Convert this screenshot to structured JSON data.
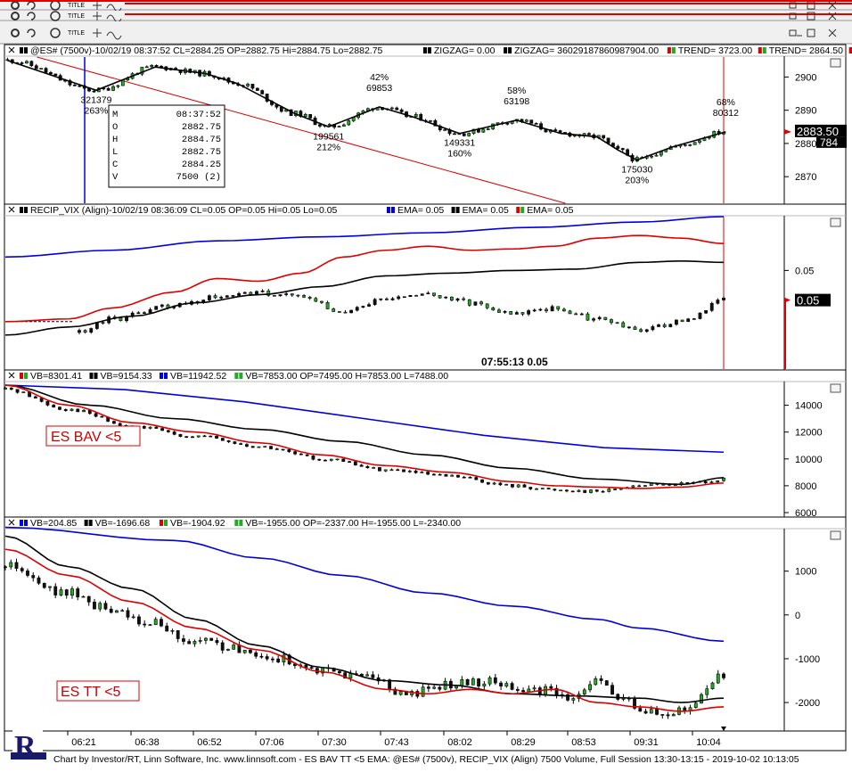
{
  "toolbars": [
    {
      "title": "TITLE"
    },
    {
      "title": "TITLE"
    },
    {
      "title": "TITLE"
    }
  ],
  "chart_data": [
    {
      "type": "candlestick",
      "header": "@ES# (7500v)-10/02/19 08:37:52 CL=2884.25 OP=2882.75 Hi=2884.75 Lo=2882.75",
      "legend": [
        "ZIGZAG = 0.00",
        "ZIGZAG = 3602918786098790 4.00",
        "TREND = 3723.00",
        "TREND = 2864.50",
        "TRE"
      ],
      "legend_text": [
        "ZIGZAG= 0.00",
        "ZIGZAG= 36029187860987904.00",
        "TREND= 3723.00",
        "TREND= 2864.50",
        "TRE"
      ],
      "yticks": [
        2870,
        2880,
        2890,
        2900
      ],
      "ylim": [
        2862,
        2906
      ],
      "last_price": "2883.50",
      "last_volume": "784",
      "zigzag": [
        {
          "t": 0.1,
          "y": 2905
        },
        {
          "t": 4.3,
          "y": 2896
        },
        {
          "t": 7.1,
          "y": 2903
        },
        {
          "t": 9.5,
          "y": 2901
        },
        {
          "t": 11.0,
          "y": 2898
        },
        {
          "t": 13.7,
          "y": 2889
        },
        {
          "t": 15.3,
          "y": 2885
        },
        {
          "t": 17.7,
          "y": 2891
        },
        {
          "t": 19.3,
          "y": 2888
        },
        {
          "t": 21.5,
          "y": 2883
        },
        {
          "t": 24.2,
          "y": 2887
        },
        {
          "t": 26.3,
          "y": 2883
        },
        {
          "t": 28.0,
          "y": 2882
        },
        {
          "t": 29.0,
          "y": 2878
        },
        {
          "t": 29.9,
          "y": 2875
        },
        {
          "t": 31.6,
          "y": 2879
        },
        {
          "t": 34.1,
          "y": 2883.5
        }
      ],
      "annotations": [
        {
          "t": 4.3,
          "y": 2896,
          "lines": [
            "321379",
            "263%"
          ],
          "pos": "below"
        },
        {
          "t": 15.3,
          "y": 2885,
          "lines": [
            "199561",
            "212%"
          ],
          "pos": "below"
        },
        {
          "t": 17.7,
          "y": 2891,
          "lines": [
            "42%",
            "69853"
          ],
          "pos": "above"
        },
        {
          "t": 21.5,
          "y": 2883,
          "lines": [
            "149331",
            "160%"
          ],
          "pos": "below"
        },
        {
          "t": 24.2,
          "y": 2887,
          "lines": [
            "58%",
            "63198"
          ],
          "pos": "above"
        },
        {
          "t": 29.9,
          "y": 2875,
          "lines": [
            "175030",
            "203%"
          ],
          "pos": "below"
        },
        {
          "t": 34.1,
          "y": 2883.5,
          "lines": [
            "68%",
            "80312"
          ],
          "pos": "above"
        }
      ],
      "data_window": [
        {
          "k": "M",
          "v": "08:37:52"
        },
        {
          "k": "O",
          "v": "2882.75"
        },
        {
          "k": "H",
          "v": "2884.75"
        },
        {
          "k": "L",
          "v": "2882.75"
        },
        {
          "k": "C",
          "v": "2884.25"
        },
        {
          "k": "V",
          "v": "7500  (2)"
        }
      ]
    },
    {
      "type": "candlestick",
      "header": "RECIP_VIX (Align)-10/02/19 08:36:09 CL=0.05 OP=0.05 Hi=0.05 Lo=0.05",
      "legend": [
        "EMA= 0.05",
        "EMA= 0.05",
        "EMA= 0.05"
      ],
      "yticks": [
        "0.05"
      ],
      "last_price": "0.05",
      "cursor_readout": "07:55:13  0.05",
      "emas": {
        "blue": [
          [
            0,
            0.3
          ],
          [
            5,
            0.25
          ],
          [
            10,
            0.18
          ],
          [
            15,
            0.15
          ],
          [
            20,
            0.12
          ],
          [
            25,
            0.08
          ],
          [
            30,
            0.04
          ],
          [
            34,
            0.0
          ]
        ],
        "black": [
          [
            0,
            0.88
          ],
          [
            3,
            0.82
          ],
          [
            6,
            0.74
          ],
          [
            9,
            0.64
          ],
          [
            12,
            0.58
          ],
          [
            15,
            0.52
          ],
          [
            18,
            0.44
          ],
          [
            21,
            0.42
          ],
          [
            24,
            0.4
          ],
          [
            27,
            0.39
          ],
          [
            30,
            0.34
          ],
          [
            32,
            0.33
          ],
          [
            34,
            0.34
          ]
        ],
        "red": [
          [
            0,
            0.78
          ],
          [
            3,
            0.76
          ],
          [
            5,
            0.68
          ],
          [
            8,
            0.56
          ],
          [
            10,
            0.46
          ],
          [
            12,
            0.48
          ],
          [
            14,
            0.42
          ],
          [
            16,
            0.3
          ],
          [
            18,
            0.25
          ],
          [
            20,
            0.22
          ],
          [
            22,
            0.25
          ],
          [
            24,
            0.24
          ],
          [
            26,
            0.22
          ],
          [
            28,
            0.16
          ],
          [
            30,
            0.14
          ],
          [
            32,
            0.16
          ],
          [
            34,
            0.2
          ]
        ]
      }
    },
    {
      "type": "candlestick",
      "header_items": [
        "VB=8301.41",
        "VB=9154.33",
        "VB=11942.52",
        "VB=7853.00 OP=7495.00 H=7853.00 L=7488.00"
      ],
      "yticks": [
        6000,
        8000,
        10000,
        12000,
        14000
      ],
      "ylim": [
        5800,
        15700
      ],
      "label": "ES BAV <5",
      "emas": {
        "blue": [
          [
            0,
            15500
          ],
          [
            34,
            10500
          ]
        ],
        "black": [
          [
            0,
            15500
          ],
          [
            4,
            14000
          ],
          [
            8,
            13000
          ],
          [
            12,
            12200
          ],
          [
            16,
            11300
          ],
          [
            20,
            10300
          ],
          [
            24,
            9300
          ],
          [
            28,
            8500
          ],
          [
            32,
            8100
          ],
          [
            34,
            8600
          ]
        ],
        "red": [
          [
            0,
            15500
          ],
          [
            3,
            14000
          ],
          [
            6,
            12700
          ],
          [
            9,
            12000
          ],
          [
            12,
            11200
          ],
          [
            15,
            10300
          ],
          [
            18,
            9500
          ],
          [
            21,
            9000
          ],
          [
            24,
            8300
          ],
          [
            26,
            8000
          ],
          [
            28,
            7900
          ],
          [
            30,
            7800
          ],
          [
            32,
            7900
          ],
          [
            34,
            8200
          ]
        ]
      }
    },
    {
      "type": "candlestick",
      "header_items": [
        "VB=204.85",
        "VB=-1696.68",
        "VB=-1904.92",
        "VB=-1955.00 OP=-2337.00 H=-1955.00 L=-2340.00"
      ],
      "yticks": [
        -2000,
        -1000,
        0,
        1000
      ],
      "ylim": [
        -2650,
        1950
      ],
      "label": "ES TT <5",
      "emas": {
        "blue": [
          [
            0,
            2000
          ],
          [
            8,
            1700
          ],
          [
            12,
            1300
          ],
          [
            16,
            900
          ],
          [
            20,
            500
          ],
          [
            24,
            200
          ],
          [
            28,
            -100
          ],
          [
            30,
            -300
          ],
          [
            34,
            -600
          ]
        ],
        "black": [
          [
            0,
            1800
          ],
          [
            3,
            1100
          ],
          [
            6,
            600
          ],
          [
            9,
            -100
          ],
          [
            12,
            -700
          ],
          [
            15,
            -1200
          ],
          [
            18,
            -1500
          ],
          [
            21,
            -1600
          ],
          [
            24,
            -1800
          ],
          [
            27,
            -1850
          ],
          [
            30,
            -1900
          ],
          [
            32,
            -2000
          ],
          [
            34,
            -1900
          ]
        ],
        "red": [
          [
            0,
            1500
          ],
          [
            3,
            900
          ],
          [
            6,
            300
          ],
          [
            9,
            -300
          ],
          [
            12,
            -800
          ],
          [
            15,
            -1300
          ],
          [
            18,
            -1700
          ],
          [
            20,
            -1800
          ],
          [
            22,
            -1700
          ],
          [
            24,
            -1800
          ],
          [
            26,
            -1700
          ],
          [
            28,
            -2000
          ],
          [
            30,
            -2100
          ],
          [
            32,
            -2200
          ],
          [
            34,
            -2100
          ]
        ]
      }
    }
  ],
  "xaxis": {
    "ticks": [
      "06:21",
      "06:38",
      "06:52",
      "07:06",
      "07:30",
      "07:43",
      "08:02",
      "08:29",
      "08:53",
      "09:31",
      "10:04"
    ]
  },
  "status_bar": "Chart by Investor/RT, Linn Software, Inc. www.linnsoft.com - ES BAV TT <5 EMA: @ES# (7500v), RECIP_VIX (Align) 7500 Volume, Full Session 13:30-13:15 - 2019-10-02 10:13:05",
  "colors": {
    "red": "#dd0000",
    "blue": "#0000dd",
    "black": "#000000",
    "up": "#22aa22",
    "frame": "#000000"
  }
}
